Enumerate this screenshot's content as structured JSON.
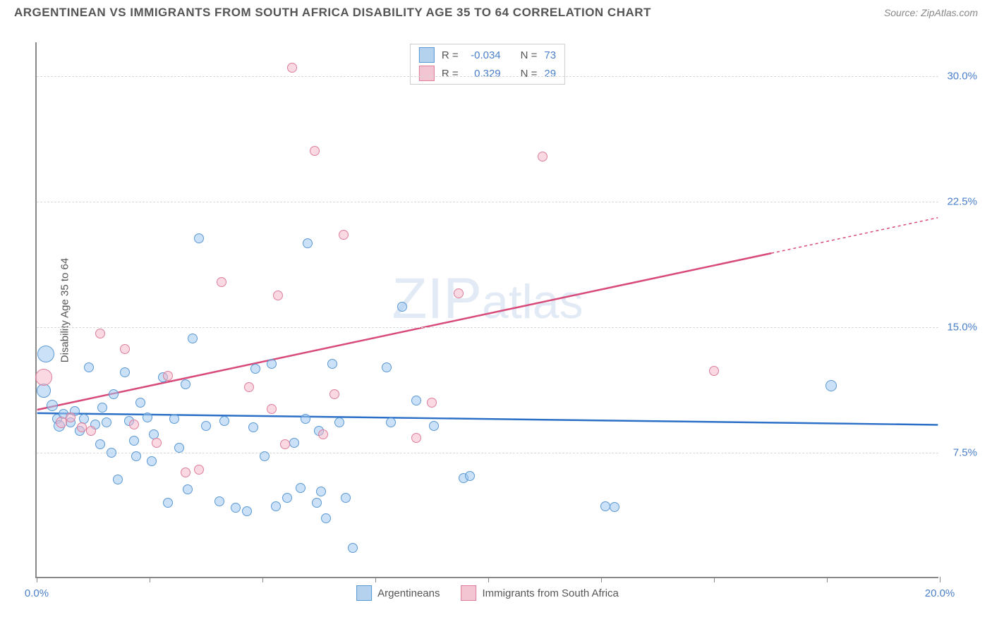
{
  "header": {
    "title": "ARGENTINEAN VS IMMIGRANTS FROM SOUTH AFRICA DISABILITY AGE 35 TO 64 CORRELATION CHART",
    "source_prefix": "Source: ",
    "source_link": "ZipAtlas.com"
  },
  "chart": {
    "type": "scatter",
    "ylabel": "Disability Age 35 to 64",
    "xlim": [
      0,
      20
    ],
    "ylim": [
      0,
      32
    ],
    "xtick_positions": [
      0,
      2.5,
      5,
      7.5,
      10,
      12.5,
      15,
      17.5,
      20
    ],
    "xtick_labels": {
      "min": "0.0%",
      "max": "20.0%"
    },
    "yticks": [
      7.5,
      15.0,
      22.5,
      30.0
    ],
    "ytick_labels": [
      "7.5%",
      "15.0%",
      "22.5%",
      "30.0%"
    ],
    "grid_color": "#d8d8d8",
    "axis_color": "#888888",
    "label_color": "#4a7fc9",
    "text_color": "#555555",
    "background_color": "#ffffff",
    "watermark": "ZIPatlas",
    "series": [
      {
        "name": "Argentineans",
        "fill": "rgba(160, 200, 240, 0.55)",
        "stroke": "#5a98d4",
        "swatch_fill": "#b4d2ee",
        "swatch_stroke": "#5a98d4",
        "trend_color": "#2b6fc7",
        "trend_y_start": 9.8,
        "trend_y_end": 9.1,
        "trend_solid_end_x": 20,
        "R": "-0.034",
        "N": "73",
        "points": [
          {
            "x": 0.2,
            "y": 13.4,
            "r": 12
          },
          {
            "x": 0.15,
            "y": 11.2,
            "r": 10
          },
          {
            "x": 0.35,
            "y": 10.3,
            "r": 8
          },
          {
            "x": 0.45,
            "y": 9.5,
            "r": 7
          },
          {
            "x": 0.5,
            "y": 9.1,
            "r": 8
          },
          {
            "x": 0.6,
            "y": 9.8,
            "r": 7
          },
          {
            "x": 0.75,
            "y": 9.3,
            "r": 7
          },
          {
            "x": 0.85,
            "y": 10.0,
            "r": 7
          },
          {
            "x": 0.95,
            "y": 8.8,
            "r": 7
          },
          {
            "x": 1.05,
            "y": 9.5,
            "r": 7
          },
          {
            "x": 1.15,
            "y": 12.6,
            "r": 7
          },
          {
            "x": 1.3,
            "y": 9.2,
            "r": 7
          },
          {
            "x": 1.4,
            "y": 8.0,
            "r": 7
          },
          {
            "x": 1.45,
            "y": 10.2,
            "r": 7
          },
          {
            "x": 1.55,
            "y": 9.3,
            "r": 7
          },
          {
            "x": 1.65,
            "y": 7.5,
            "r": 7
          },
          {
            "x": 1.7,
            "y": 11.0,
            "r": 7
          },
          {
            "x": 1.8,
            "y": 5.9,
            "r": 7
          },
          {
            "x": 1.95,
            "y": 12.3,
            "r": 7
          },
          {
            "x": 2.05,
            "y": 9.4,
            "r": 7
          },
          {
            "x": 2.15,
            "y": 8.2,
            "r": 7
          },
          {
            "x": 2.2,
            "y": 7.3,
            "r": 7
          },
          {
            "x": 2.3,
            "y": 10.5,
            "r": 7
          },
          {
            "x": 2.45,
            "y": 9.6,
            "r": 7
          },
          {
            "x": 2.55,
            "y": 7.0,
            "r": 7
          },
          {
            "x": 2.6,
            "y": 8.6,
            "r": 7
          },
          {
            "x": 2.8,
            "y": 12.0,
            "r": 7
          },
          {
            "x": 2.9,
            "y": 4.5,
            "r": 7
          },
          {
            "x": 3.05,
            "y": 9.5,
            "r": 7
          },
          {
            "x": 3.15,
            "y": 7.8,
            "r": 7
          },
          {
            "x": 3.3,
            "y": 11.6,
            "r": 7
          },
          {
            "x": 3.35,
            "y": 5.3,
            "r": 7
          },
          {
            "x": 3.45,
            "y": 14.3,
            "r": 7
          },
          {
            "x": 3.6,
            "y": 20.3,
            "r": 7
          },
          {
            "x": 3.75,
            "y": 9.1,
            "r": 7
          },
          {
            "x": 4.05,
            "y": 4.6,
            "r": 7
          },
          {
            "x": 4.15,
            "y": 9.4,
            "r": 7
          },
          {
            "x": 4.4,
            "y": 4.2,
            "r": 7
          },
          {
            "x": 4.65,
            "y": 4.0,
            "r": 7
          },
          {
            "x": 4.8,
            "y": 9.0,
            "r": 7
          },
          {
            "x": 4.85,
            "y": 12.5,
            "r": 7
          },
          {
            "x": 5.05,
            "y": 7.3,
            "r": 7
          },
          {
            "x": 5.2,
            "y": 12.8,
            "r": 7
          },
          {
            "x": 5.3,
            "y": 4.3,
            "r": 7
          },
          {
            "x": 5.55,
            "y": 4.8,
            "r": 7
          },
          {
            "x": 5.7,
            "y": 8.1,
            "r": 7
          },
          {
            "x": 5.85,
            "y": 5.4,
            "r": 7
          },
          {
            "x": 5.95,
            "y": 9.5,
            "r": 7
          },
          {
            "x": 6.0,
            "y": 20.0,
            "r": 7
          },
          {
            "x": 6.2,
            "y": 4.5,
            "r": 7
          },
          {
            "x": 6.25,
            "y": 8.8,
            "r": 7
          },
          {
            "x": 6.3,
            "y": 5.2,
            "r": 7
          },
          {
            "x": 6.4,
            "y": 3.6,
            "r": 7
          },
          {
            "x": 6.55,
            "y": 12.8,
            "r": 7
          },
          {
            "x": 6.7,
            "y": 9.3,
            "r": 7
          },
          {
            "x": 6.85,
            "y": 4.8,
            "r": 7
          },
          {
            "x": 7.0,
            "y": 1.8,
            "r": 7
          },
          {
            "x": 7.75,
            "y": 12.6,
            "r": 7
          },
          {
            "x": 7.85,
            "y": 9.3,
            "r": 7
          },
          {
            "x": 8.1,
            "y": 16.2,
            "r": 7
          },
          {
            "x": 8.4,
            "y": 10.6,
            "r": 7
          },
          {
            "x": 8.8,
            "y": 9.1,
            "r": 7
          },
          {
            "x": 9.45,
            "y": 6.0,
            "r": 7
          },
          {
            "x": 9.6,
            "y": 6.1,
            "r": 7
          },
          {
            "x": 12.6,
            "y": 4.3,
            "r": 7
          },
          {
            "x": 12.8,
            "y": 4.25,
            "r": 7
          },
          {
            "x": 17.6,
            "y": 11.5,
            "r": 8
          }
        ]
      },
      {
        "name": "Immigrants from South Africa",
        "fill": "rgba(245, 180, 200, 0.50)",
        "stroke": "#dd7d9a",
        "swatch_fill": "#f3c5d2",
        "swatch_stroke": "#dd7d9a",
        "trend_color": "#d74a7a",
        "trend_y_start": 10.0,
        "trend_y_end": 21.5,
        "trend_solid_end_x": 16.3,
        "R": "0.329",
        "N": "29",
        "points": [
          {
            "x": 0.15,
            "y": 12.0,
            "r": 12
          },
          {
            "x": 0.55,
            "y": 9.3,
            "r": 8
          },
          {
            "x": 0.75,
            "y": 9.6,
            "r": 7
          },
          {
            "x": 1.0,
            "y": 9.0,
            "r": 7
          },
          {
            "x": 1.2,
            "y": 8.8,
            "r": 7
          },
          {
            "x": 1.4,
            "y": 14.6,
            "r": 7
          },
          {
            "x": 1.95,
            "y": 13.7,
            "r": 7
          },
          {
            "x": 2.15,
            "y": 9.2,
            "r": 7
          },
          {
            "x": 2.65,
            "y": 8.1,
            "r": 7
          },
          {
            "x": 2.9,
            "y": 12.1,
            "r": 7
          },
          {
            "x": 3.3,
            "y": 6.3,
            "r": 7
          },
          {
            "x": 3.6,
            "y": 6.5,
            "r": 7
          },
          {
            "x": 4.1,
            "y": 17.7,
            "r": 7
          },
          {
            "x": 4.7,
            "y": 11.4,
            "r": 7
          },
          {
            "x": 5.2,
            "y": 10.1,
            "r": 7
          },
          {
            "x": 5.35,
            "y": 16.9,
            "r": 7
          },
          {
            "x": 5.5,
            "y": 8.0,
            "r": 7
          },
          {
            "x": 5.65,
            "y": 30.5,
            "r": 7
          },
          {
            "x": 6.15,
            "y": 25.5,
            "r": 7
          },
          {
            "x": 6.35,
            "y": 8.6,
            "r": 7
          },
          {
            "x": 6.6,
            "y": 11.0,
            "r": 7
          },
          {
            "x": 6.8,
            "y": 20.5,
            "r": 7
          },
          {
            "x": 8.4,
            "y": 8.4,
            "r": 7
          },
          {
            "x": 8.75,
            "y": 10.5,
            "r": 7
          },
          {
            "x": 9.35,
            "y": 17.0,
            "r": 7
          },
          {
            "x": 11.2,
            "y": 25.2,
            "r": 7
          },
          {
            "x": 15.0,
            "y": 12.4,
            "r": 7
          }
        ]
      }
    ]
  },
  "stats_legend": {
    "R_label": "R =",
    "N_label": "N ="
  }
}
